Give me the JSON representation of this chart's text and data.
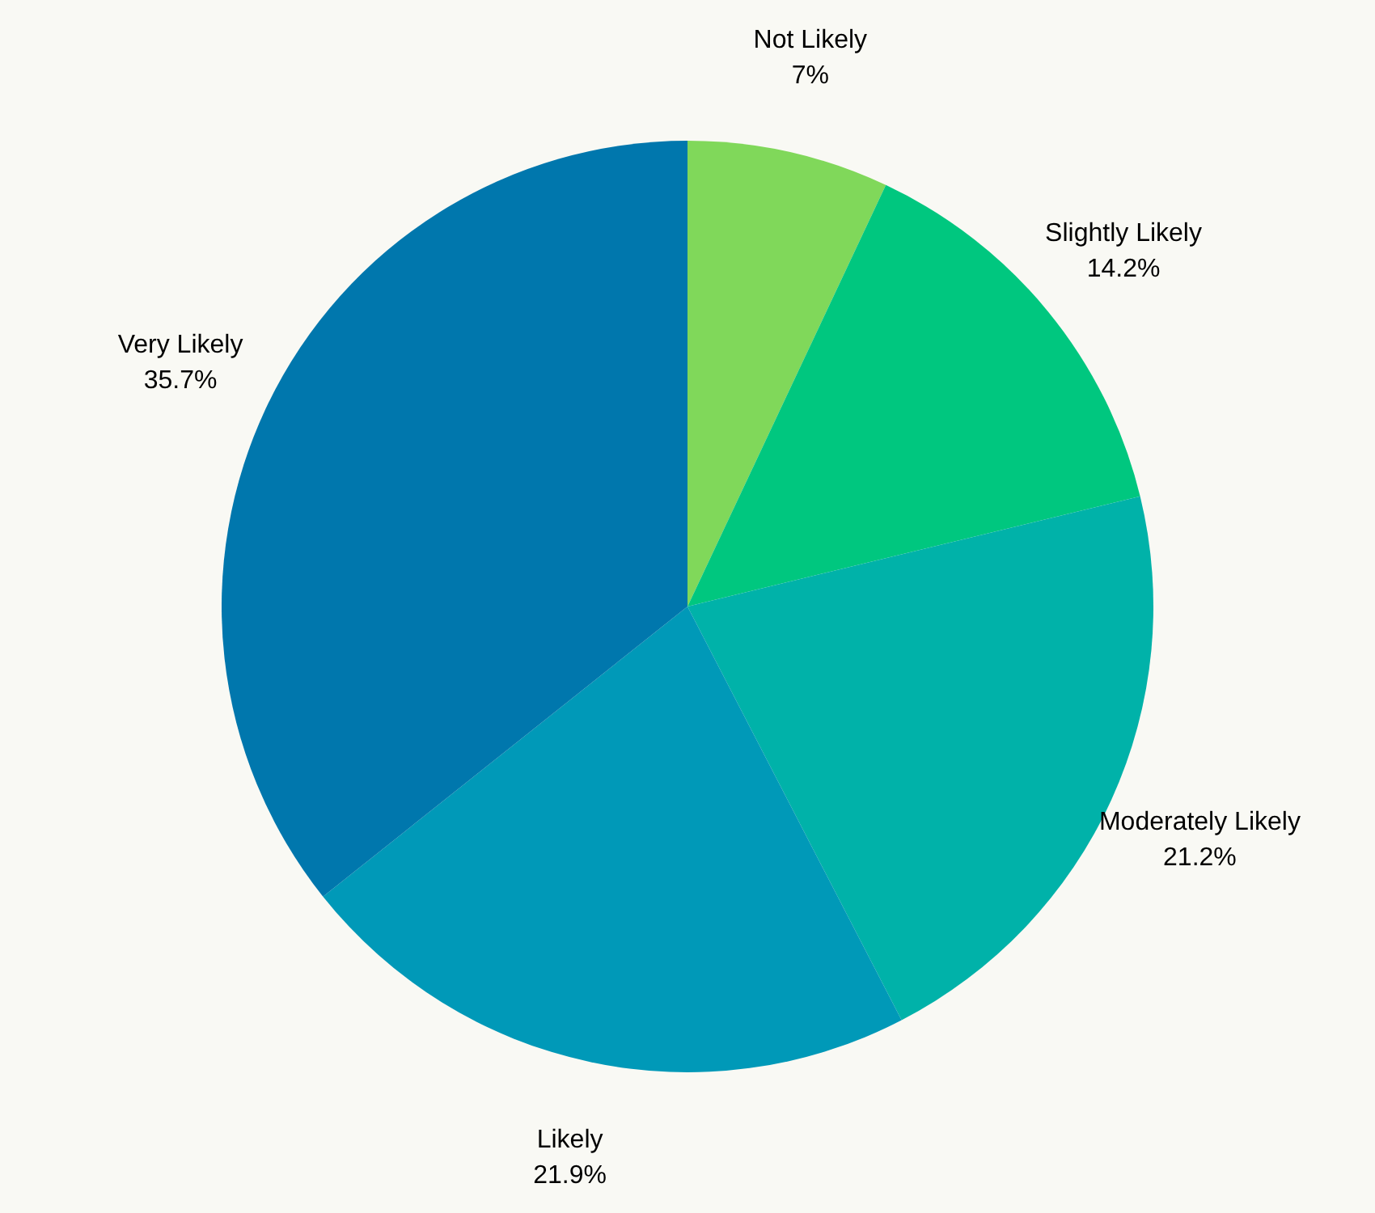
{
  "chart_data": {
    "type": "pie",
    "categories": [
      "Not Likely",
      "Slightly Likely",
      "Moderately Likely",
      "Likely",
      "Very Likely"
    ],
    "values": [
      7,
      14.2,
      21.2,
      21.9,
      35.7
    ],
    "value_labels": [
      "7%",
      "14.2%",
      "21.2%",
      "21.9%",
      "35.7%"
    ],
    "colors": [
      "#80d85a",
      "#00c77f",
      "#00b2a9",
      "#0099b8",
      "#0077ad"
    ]
  }
}
